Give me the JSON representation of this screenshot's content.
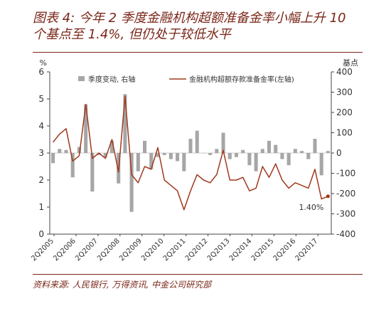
{
  "title_line1": "图表 4: 今年 2 季度金融机构超额准备金率小幅上升 10",
  "title_line2": "个基点至 1.4%, 但仍处于较低水平",
  "source": "资料来源: 人民银行, 万得资讯, 中金公司研究部",
  "colors": {
    "bar": "#a6a6a6",
    "line": "#a0391d",
    "title": "#7a2618"
  },
  "chart_data": {
    "type": "bar+line",
    "left_unit": "%",
    "right_unit": "基点",
    "left_ylim": [
      0,
      6
    ],
    "right_ylim": [
      -400,
      400
    ],
    "left_ticks": [
      "0",
      "1",
      "2",
      "3",
      "4",
      "5",
      "6"
    ],
    "right_ticks": [
      "-400",
      "-300",
      "-200",
      "-100",
      "0",
      "100",
      "200",
      "300",
      "400"
    ],
    "x_labels": [
      "2Q2005",
      "2Q2006",
      "2Q2007",
      "2Q2008",
      "2Q2009",
      "2Q2010",
      "2Q2011",
      "2Q2012",
      "2Q2013",
      "2Q2014",
      "2Q2015",
      "2Q2016",
      "2Q2017"
    ],
    "legend": {
      "bar": "季度变动, 右轴",
      "line": "金融机构超额存款准备金率(左轴)"
    },
    "annotation": "1.40%",
    "bar_series": {
      "name": "季度变动, 右轴",
      "axis": "right",
      "values": [
        -50,
        20,
        15,
        -120,
        30,
        240,
        -190,
        -10,
        -20,
        60,
        -150,
        290,
        -290,
        -90,
        60,
        -80,
        -20,
        -10,
        -30,
        -40,
        -90,
        70,
        110,
        0,
        -10,
        20,
        100,
        -30,
        -20,
        15,
        -60,
        -90,
        20,
        60,
        40,
        -30,
        -60,
        20,
        10,
        -30,
        70,
        -110,
        10
      ]
    },
    "line_series": {
      "name": "金融机构超额存款准备金率(左轴)",
      "axis": "left",
      "values": [
        3.4,
        3.7,
        3.9,
        2.7,
        2.9,
        4.8,
        2.8,
        3.0,
        2.8,
        3.5,
        2.3,
        5.1,
        2.2,
        1.9,
        2.5,
        2.4,
        3.2,
        2.0,
        1.8,
        1.6,
        0.9,
        1.6,
        2.2,
        2.0,
        1.9,
        2.2,
        3.1,
        2.0,
        2.0,
        2.1,
        1.6,
        1.7,
        2.5,
        2.1,
        2.6,
        2.0,
        1.7,
        1.9,
        1.8,
        1.7,
        2.4,
        1.3,
        1.4
      ]
    }
  }
}
